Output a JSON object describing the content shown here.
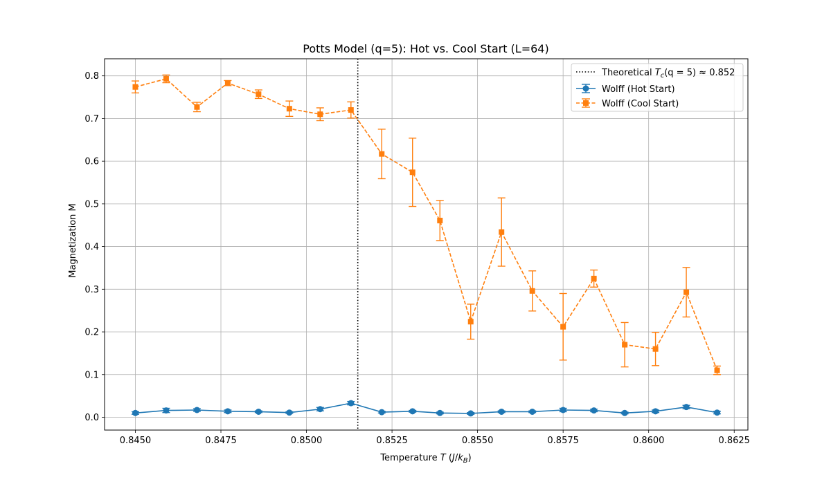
{
  "chart_data": {
    "type": "line",
    "title": "Potts Model (q=5): Hot vs. Cool Start (L=64)",
    "xlabel": {
      "prefix": "Temperature ",
      "var": "T",
      "units_open": " (",
      "units_J": "J",
      "units_slash": "/",
      "units_k": "k",
      "units_sub": "B",
      "units_close": ")"
    },
    "ylabel": "Magnetization M",
    "xlim": [
      0.8441,
      0.8629
    ],
    "ylim": [
      -0.03,
      0.84
    ],
    "xticks": [
      0.845,
      0.8475,
      0.85,
      0.8525,
      0.855,
      0.8575,
      0.86,
      0.8625
    ],
    "xtick_labels": [
      "0.8450",
      "0.8475",
      "0.8500",
      "0.8525",
      "0.8550",
      "0.8575",
      "0.8600",
      "0.8625"
    ],
    "yticks": [
      0.0,
      0.1,
      0.2,
      0.3,
      0.4,
      0.5,
      0.6,
      0.7,
      0.8
    ],
    "ytick_labels": [
      "0.0",
      "0.1",
      "0.2",
      "0.3",
      "0.4",
      "0.5",
      "0.6",
      "0.7",
      "0.8"
    ],
    "grid": true,
    "legend_position": "top-right",
    "vline": {
      "x": 0.8515,
      "label_prefix": "Theoretical ",
      "label_T": "T",
      "label_sub": "c",
      "label_args": "(q = 5) ≈ 0.852",
      "color": "#000000"
    },
    "x": [
      0.845,
      0.8459,
      0.8468,
      0.8477,
      0.8486,
      0.8495,
      0.8504,
      0.8513,
      0.8522,
      0.8531,
      0.8539,
      0.8548,
      0.8557,
      0.8566,
      0.8575,
      0.8584,
      0.8593,
      0.8602,
      0.8611,
      0.862
    ],
    "series": [
      {
        "name": "Wolff (Hot Start)",
        "color": "#1f77b4",
        "marker": "circle",
        "linestyle": "solid",
        "values": [
          0.01,
          0.016,
          0.017,
          0.014,
          0.013,
          0.011,
          0.019,
          0.033,
          0.012,
          0.014,
          0.01,
          0.009,
          0.013,
          0.013,
          0.017,
          0.016,
          0.01,
          0.014,
          0.024,
          0.011
        ],
        "errors": [
          0.003,
          0.005,
          0.003,
          0.003,
          0.002,
          0.002,
          0.004,
          0.004,
          0.002,
          0.002,
          0.002,
          0.002,
          0.002,
          0.002,
          0.004,
          0.003,
          0.002,
          0.003,
          0.004,
          0.003
        ]
      },
      {
        "name": "Wolff (Cool Start)",
        "color": "#ff7f0e",
        "marker": "square",
        "linestyle": "dashed",
        "values": [
          0.774,
          0.793,
          0.727,
          0.783,
          0.757,
          0.723,
          0.71,
          0.72,
          0.617,
          0.574,
          0.461,
          0.224,
          0.434,
          0.296,
          0.212,
          0.325,
          0.17,
          0.16,
          0.293,
          0.11
        ],
        "errors": [
          0.014,
          0.009,
          0.011,
          0.006,
          0.01,
          0.018,
          0.015,
          0.019,
          0.058,
          0.08,
          0.047,
          0.041,
          0.08,
          0.047,
          0.078,
          0.02,
          0.052,
          0.039,
          0.058,
          0.01
        ]
      }
    ]
  }
}
